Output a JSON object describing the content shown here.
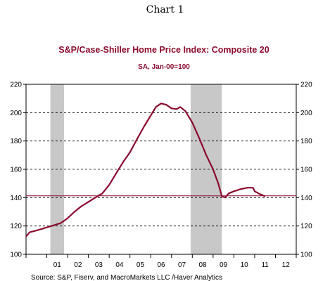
{
  "page_header": "Chart 1",
  "chart_data": {
    "type": "line",
    "title": "S&P/Case-Shiller Home Price Index: Composite 20",
    "subtitle": "SA, Jan-00=100",
    "source": "Source:  S&P, Fiserv, and MacroMarkets LLC /Haver Analytics",
    "ylim": [
      100,
      220
    ],
    "yticks": [
      100,
      120,
      140,
      160,
      180,
      200,
      220
    ],
    "xlim": [
      2000.0,
      2013.0
    ],
    "xtick_labels": [
      {
        "label": "01",
        "x": 2001.5
      },
      {
        "label": "02",
        "x": 2002.5
      },
      {
        "label": "03",
        "x": 2003.5
      },
      {
        "label": "04",
        "x": 2004.5
      },
      {
        "label": "05",
        "x": 2005.5
      },
      {
        "label": "06",
        "x": 2006.5
      },
      {
        "label": "07",
        "x": 2007.5
      },
      {
        "label": "08",
        "x": 2008.5
      },
      {
        "label": "09",
        "x": 2009.5
      },
      {
        "label": "10",
        "x": 2010.5
      },
      {
        "label": "11",
        "x": 2011.5
      },
      {
        "label": "12",
        "x": 2012.5
      }
    ],
    "recessions": [
      [
        2001.17,
        2001.83
      ],
      [
        2007.92,
        2009.42
      ]
    ],
    "reference_line": 141.3,
    "grid": "horizontal dashed",
    "colors": {
      "line": "#8b0a2e",
      "recession": "#c8c8c8",
      "title": "#8b0a2e"
    },
    "series": [
      {
        "points": [
          [
            2000.0,
            112.5
          ],
          [
            2000.17,
            115.5
          ],
          [
            2000.42,
            116.5
          ],
          [
            2000.67,
            117.5
          ],
          [
            2001.0,
            119.0
          ],
          [
            2001.33,
            120.5
          ],
          [
            2001.67,
            122.0
          ],
          [
            2002.0,
            125.5
          ],
          [
            2002.33,
            130.0
          ],
          [
            2002.67,
            134.0
          ],
          [
            2003.0,
            137.0
          ],
          [
            2003.33,
            140.0
          ],
          [
            2003.67,
            143.0
          ],
          [
            2004.0,
            149.0
          ],
          [
            2004.33,
            157.0
          ],
          [
            2004.67,
            165.0
          ],
          [
            2005.0,
            172.0
          ],
          [
            2005.33,
            181.0
          ],
          [
            2005.67,
            190.0
          ],
          [
            2006.0,
            198.0
          ],
          [
            2006.25,
            204.0
          ],
          [
            2006.5,
            206.5
          ],
          [
            2006.75,
            205.5
          ],
          [
            2007.0,
            203.0
          ],
          [
            2007.25,
            202.5
          ],
          [
            2007.42,
            204.0
          ],
          [
            2007.67,
            201.0
          ],
          [
            2008.0,
            193.0
          ],
          [
            2008.33,
            182.0
          ],
          [
            2008.67,
            170.0
          ],
          [
            2009.0,
            160.0
          ],
          [
            2009.25,
            150.0
          ],
          [
            2009.42,
            141.0
          ],
          [
            2009.58,
            140.0
          ],
          [
            2009.75,
            143.0
          ],
          [
            2010.0,
            144.5
          ],
          [
            2010.33,
            146.0
          ],
          [
            2010.67,
            147.0
          ],
          [
            2010.92,
            147.0
          ],
          [
            2011.0,
            144.5
          ],
          [
            2011.25,
            142.5
          ],
          [
            2011.5,
            141.0
          ]
        ]
      }
    ]
  }
}
